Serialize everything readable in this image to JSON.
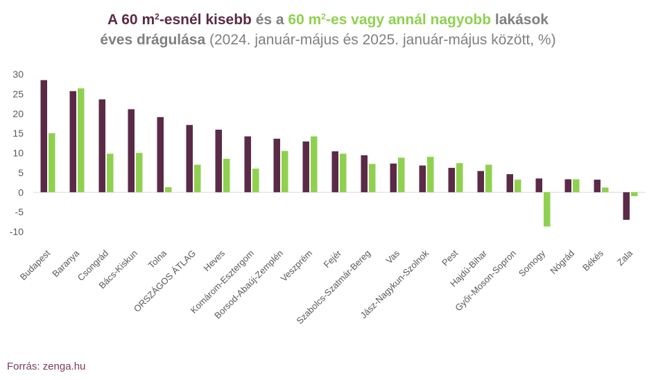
{
  "title": {
    "part1": "A ",
    "part2": "60 m",
    "part3": "2",
    "part4": "-esnél kisebb",
    "part5": " és a ",
    "part6": "60 m",
    "part7": "2",
    "part8": "-es vagy annál nagyobb",
    "part9": " lakások",
    "part10": "éves drágulása",
    "part11": " (2024. január-május és 2025. január-május között, %)"
  },
  "source": "Forrás: zenga.hu",
  "colors": {
    "series_small": "#5a2a47",
    "series_large": "#8fd14f",
    "axis": "#d9d9d9",
    "text": "#595959"
  },
  "chart_data": {
    "type": "bar",
    "categories": [
      "Budapest",
      "Baranya",
      "Csongrád",
      "Bács-Kiskun",
      "Tolna",
      "ORSZÁGOS ÁTLAG",
      "Heves",
      "Komárom-Esztergom",
      "Borsod-Abaúj-Zemplén",
      "Veszprém",
      "Fejér",
      "Szabolcs-Szatmár-Bereg",
      "Vas",
      "Jász-Nagykun-Szolnok",
      "Pest",
      "Hajdú-Bihar",
      "Győr-Moson-Sopron",
      "Somogy",
      "Nógrád",
      "Békés",
      "Zala"
    ],
    "series": [
      {
        "values": [
          28.5,
          25.7,
          23.6,
          21.1,
          19.1,
          17.1,
          15.9,
          14.2,
          13.6,
          12.9,
          10.4,
          9.4,
          7.3,
          6.8,
          6.2,
          5.4,
          4.6,
          3.5,
          3.3,
          3.2,
          -7.0
        ]
      },
      {
        "values": [
          15.0,
          26.4,
          9.8,
          10.0,
          1.3,
          7.0,
          8.5,
          6.0,
          10.5,
          14.2,
          9.8,
          7.2,
          8.8,
          9.0,
          7.4,
          7.0,
          3.2,
          -8.7,
          3.3,
          1.2,
          -1.0
        ]
      }
    ],
    "ylim": [
      -10,
      30
    ],
    "yticks": [
      -10,
      -5,
      0,
      5,
      10,
      15,
      20,
      25,
      30
    ],
    "ytick_labels": [
      "-10",
      "-5",
      "0",
      "5",
      "10",
      "15",
      "20",
      "25",
      "30"
    ],
    "grid": false,
    "legend": "none"
  }
}
